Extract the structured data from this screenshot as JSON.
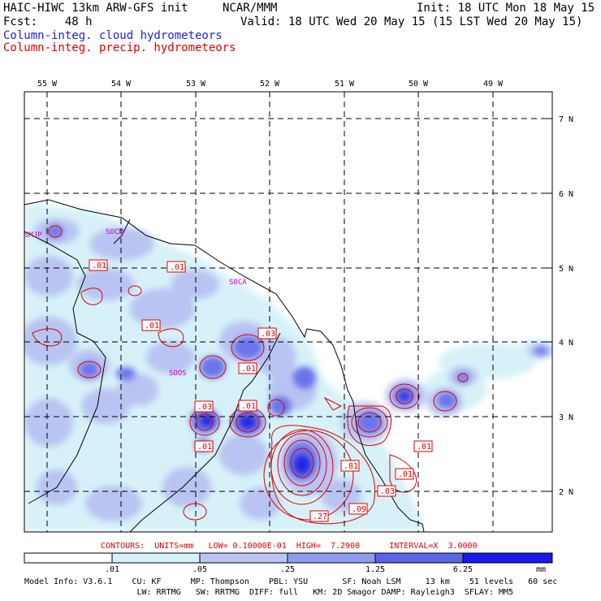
{
  "header": {
    "title_left": "HAIC-HIWC 13km ARW-GFS init",
    "org": "NCAR/MMM",
    "init": "Init: 18 UTC Mon 18 May 15",
    "fcst": "Fcst:    48 h",
    "valid": "Valid: 18 UTC Wed 20 May 15 (15 LST Wed 20 May 15)",
    "field_cloud": "Column-integ. cloud hydrometeors",
    "field_precip": "Column-integ. precip. hydrometeors"
  },
  "colors": {
    "cloud_text": "#1f1fd6",
    "precip": "#e00000",
    "coast": "#000000",
    "grid": "#000000",
    "station": "#cc00cc",
    "fill_levels": [
      "#ffffff",
      "#d6f2f8",
      "#b9c4f2",
      "#8f9cee",
      "#5a64e8",
      "#1a1ae8"
    ]
  },
  "map": {
    "lon_labels": [
      "55 W",
      "54 W",
      "53 W",
      "52 W",
      "51 W",
      "50 W",
      "49 W"
    ],
    "lat_labels": [
      "7 N",
      "6 N",
      "5 N",
      "4 N",
      "3 N",
      "2 N"
    ],
    "stations": [
      "SMJP",
      "SOCM",
      "SOCA",
      "SOOS"
    ],
    "contour_labels": [
      ".01",
      ".01",
      ".01",
      ".03",
      ".01",
      ".03",
      ".01",
      ".01",
      ".01",
      ".81",
      ".01",
      ".03",
      ".09",
      ".27"
    ]
  },
  "contour_info": "CONTOURS:  UNITS=mm   LOW= 0.10000E-01  HIGH=  7.2900      INTERVAL=X  3.0000",
  "colorbar": {
    "ticks": [
      ".01",
      ".05",
      ".25",
      "1.25",
      "6.25"
    ],
    "units": "mm"
  },
  "model_info": {
    "line1": "Model Info: V3.6.1    CU: KF      MP: Thompson    PBL: YSU       SF: Noah LSM     13 km    51 levels   60 sec",
    "line2": "                       LW: RRTMG   SW: RRTMG  DIFF: full   KM: 2D Smagor DAMP: Rayleigh3  SFLAY: MM5"
  }
}
